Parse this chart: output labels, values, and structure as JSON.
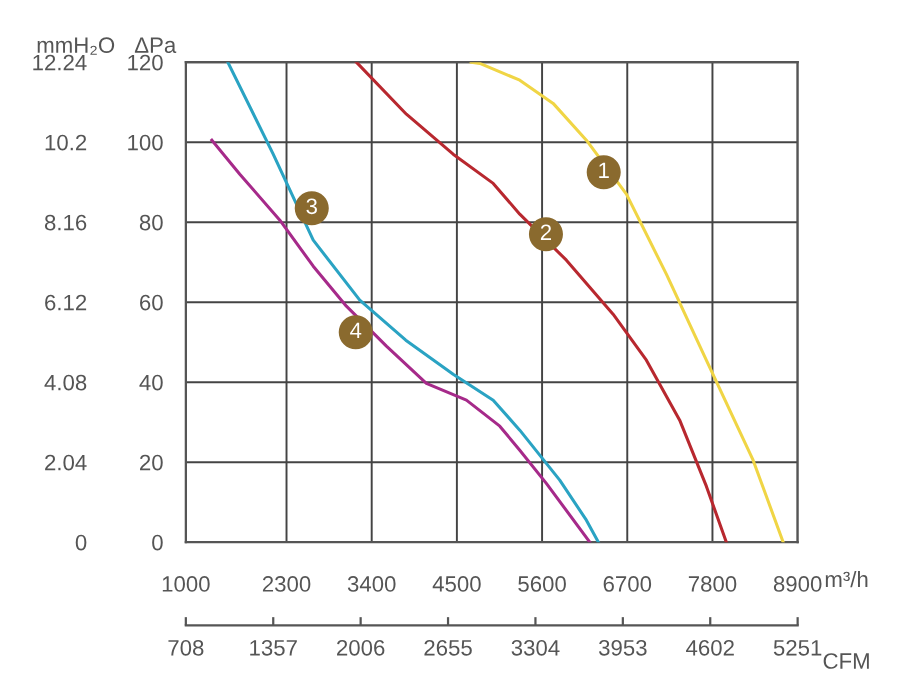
{
  "chart_data": {
    "type": "line",
    "xlabel": "m³/h",
    "ylabel": "ΔPa",
    "y2label": "mmH₂O",
    "x2label": "CFM",
    "xlim": [
      1000,
      8900
    ],
    "xticks": [
      1000,
      2300,
      3400,
      4500,
      5600,
      6700,
      7800,
      8900
    ],
    "ylim": [
      0,
      120
    ],
    "yticks": [
      0,
      20,
      40,
      60,
      80,
      100,
      120
    ],
    "y2lim": [
      0,
      12.24
    ],
    "y2ticks": [
      0,
      2.04,
      4.08,
      6.12,
      8.16,
      10.2,
      12.24
    ],
    "x2lim": [
      708,
      5251
    ],
    "x2ticks": [
      708,
      1357,
      2006,
      2655,
      3304,
      3953,
      4602,
      5251
    ],
    "grid": true,
    "marker": "none",
    "line_style": "solid",
    "series": [
      {
        "color": "#f0d545",
        "x": [
          4684,
          4796,
          5312,
          5743,
          6172,
          6689,
          7205,
          7721,
          8325,
          8713
        ],
        "values": [
          120,
          119.7,
          115.5,
          109.7,
          100.5,
          87,
          67,
          45.5,
          20.5,
          0
        ]
      },
      {
        "color": "#b8282f",
        "x": [
          3203,
          3848,
          4452,
          4969,
          5312,
          5914,
          6517,
          6947,
          7377,
          7721,
          7979
        ],
        "values": [
          120,
          107,
          97,
          89.7,
          82,
          70.5,
          57,
          45.5,
          30.5,
          14,
          0
        ]
      },
      {
        "color": "#2aa3c3",
        "x": [
          1542,
          2128,
          2645,
          3246,
          3840,
          4452,
          4969,
          5312,
          5828,
          6172,
          6327
        ],
        "values": [
          120,
          97,
          75.5,
          60.5,
          50.5,
          42,
          35.5,
          28,
          15.5,
          5.5,
          0
        ]
      },
      {
        "color": "#a62a8a",
        "x": [
          1336,
          1697,
          2214,
          2645,
          3073,
          3590,
          4106,
          4623,
          5054,
          5312,
          5655,
          6216
        ],
        "values": [
          100.5,
          92,
          80.5,
          69,
          59,
          49,
          39.7,
          35.5,
          29,
          23,
          14.7,
          0
        ]
      }
    ],
    "annotations": [
      {
        "text": "1",
        "x": 6396,
        "y": 92.5
      },
      {
        "text": "2",
        "x": 5650,
        "y": 77
      },
      {
        "text": "3",
        "x": 2626,
        "y": 83.5
      },
      {
        "text": "4",
        "x": 3194,
        "y": 52.5
      }
    ]
  }
}
